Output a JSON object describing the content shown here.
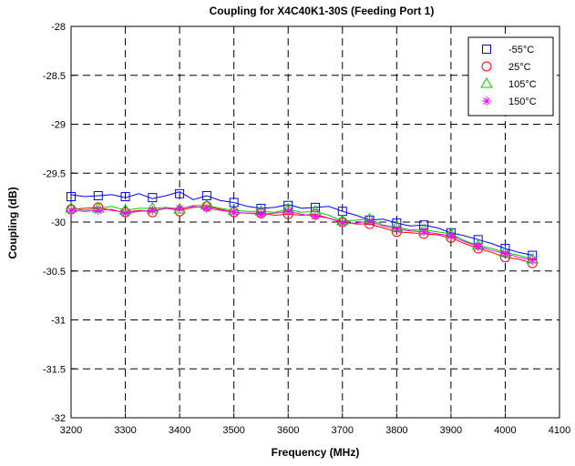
{
  "chart_data": {
    "type": "line",
    "title": "Coupling for X4C40K1-30S (Feeding Port 1)",
    "xlabel": "Frequency (MHz)",
    "ylabel": "Coupling (dB)",
    "xlim": [
      3200,
      4100
    ],
    "ylim": [
      -32,
      -28
    ],
    "xticks": [
      3200,
      3300,
      3400,
      3500,
      3600,
      3700,
      3800,
      3900,
      4000,
      4100
    ],
    "yticks": [
      -28,
      -28.5,
      -29,
      -29.5,
      -30,
      -30.5,
      -31,
      -31.5,
      -32
    ],
    "grid": true,
    "legend_position": "top-right",
    "x": [
      3200,
      3250,
      3300,
      3350,
      3400,
      3450,
      3500,
      3550,
      3600,
      3650,
      3700,
      3750,
      3800,
      3850,
      3900,
      3950,
      4000,
      4050
    ],
    "series": [
      {
        "name": "-55°C",
        "color": "#0000ff",
        "marker": "square",
        "marker_values": [
          -29.74,
          -29.73,
          -29.74,
          -29.75,
          -29.71,
          -29.73,
          -29.8,
          -29.86,
          -29.83,
          -29.85,
          -29.89,
          -29.98,
          -30.01,
          -30.03,
          -30.11,
          -30.18,
          -30.27,
          -30.34
        ],
        "curve_x": [
          3200,
          3225,
          3250,
          3275,
          3300,
          3325,
          3350,
          3375,
          3400,
          3425,
          3450,
          3475,
          3500,
          3525,
          3550,
          3575,
          3600,
          3625,
          3650,
          3675,
          3700,
          3725,
          3750,
          3775,
          3800,
          3825,
          3850,
          3875,
          3900,
          3925,
          3950,
          3975,
          4000,
          4025,
          4050
        ],
        "curve_values": [
          -29.72,
          -29.74,
          -29.73,
          -29.72,
          -29.75,
          -29.71,
          -29.76,
          -29.73,
          -29.69,
          -29.77,
          -29.73,
          -29.78,
          -29.8,
          -29.84,
          -29.86,
          -29.85,
          -29.82,
          -29.86,
          -29.85,
          -29.84,
          -29.89,
          -29.93,
          -29.98,
          -29.97,
          -30.01,
          -30.04,
          -30.03,
          -30.06,
          -30.11,
          -30.14,
          -30.18,
          -30.22,
          -30.27,
          -30.31,
          -30.34
        ]
      },
      {
        "name": "25°C",
        "color": "#ff0000",
        "marker": "circle",
        "marker_values": [
          -29.87,
          -29.85,
          -29.9,
          -29.9,
          -29.89,
          -29.84,
          -29.9,
          -29.91,
          -29.92,
          -29.92,
          -30.0,
          -30.02,
          -30.1,
          -30.12,
          -30.16,
          -30.27,
          -30.36,
          -30.42
        ],
        "curve_x": [
          3200,
          3225,
          3250,
          3275,
          3300,
          3325,
          3350,
          3375,
          3400,
          3425,
          3450,
          3475,
          3500,
          3525,
          3550,
          3575,
          3600,
          3625,
          3650,
          3675,
          3700,
          3725,
          3750,
          3775,
          3800,
          3825,
          3850,
          3875,
          3900,
          3925,
          3950,
          3975,
          4000,
          4025,
          4050
        ],
        "curve_values": [
          -29.87,
          -29.86,
          -29.85,
          -29.88,
          -29.9,
          -29.88,
          -29.89,
          -29.86,
          -29.88,
          -29.85,
          -29.84,
          -29.87,
          -29.9,
          -29.91,
          -29.91,
          -29.93,
          -29.92,
          -29.93,
          -29.92,
          -29.96,
          -30.0,
          -30.02,
          -30.02,
          -30.06,
          -30.1,
          -30.11,
          -30.12,
          -30.13,
          -30.16,
          -30.22,
          -30.27,
          -30.31,
          -30.36,
          -30.38,
          -30.42
        ]
      },
      {
        "name": "105°C",
        "color": "#00cc00",
        "marker": "triangle",
        "marker_values": [
          -29.86,
          -29.86,
          -29.88,
          -29.86,
          -29.87,
          -29.83,
          -29.88,
          -29.89,
          -29.87,
          -29.89,
          -29.99,
          -29.97,
          -30.05,
          -30.08,
          -30.12,
          -30.24,
          -30.31,
          -30.38
        ],
        "curve_x": [
          3200,
          3225,
          3250,
          3275,
          3300,
          3325,
          3350,
          3375,
          3400,
          3425,
          3450,
          3475,
          3500,
          3525,
          3550,
          3575,
          3600,
          3625,
          3650,
          3675,
          3700,
          3725,
          3750,
          3775,
          3800,
          3825,
          3850,
          3875,
          3900,
          3925,
          3950,
          3975,
          4000,
          4025,
          4050
        ],
        "curve_values": [
          -29.86,
          -29.88,
          -29.86,
          -29.84,
          -29.88,
          -29.86,
          -29.86,
          -29.85,
          -29.87,
          -29.83,
          -29.83,
          -29.86,
          -29.88,
          -29.89,
          -29.89,
          -29.9,
          -29.87,
          -29.9,
          -29.89,
          -29.93,
          -29.99,
          -29.98,
          -29.97,
          -30.03,
          -30.05,
          -30.08,
          -30.08,
          -30.1,
          -30.12,
          -30.19,
          -30.24,
          -30.27,
          -30.31,
          -30.34,
          -30.38
        ]
      },
      {
        "name": "150°C",
        "color": "#ff00ff",
        "marker": "asterisk",
        "marker_values": [
          -29.88,
          -29.88,
          -29.91,
          -29.88,
          -29.86,
          -29.86,
          -29.9,
          -29.92,
          -29.89,
          -29.94,
          -30.01,
          -29.99,
          -30.07,
          -30.1,
          -30.14,
          -30.25,
          -30.32,
          -30.39
        ],
        "curve_x": [
          3200,
          3225,
          3250,
          3275,
          3300,
          3325,
          3350,
          3375,
          3400,
          3425,
          3450,
          3475,
          3500,
          3525,
          3550,
          3575,
          3600,
          3625,
          3650,
          3675,
          3700,
          3725,
          3750,
          3775,
          3800,
          3825,
          3850,
          3875,
          3900,
          3925,
          3950,
          3975,
          4000,
          4025,
          4050
        ],
        "curve_values": [
          -29.88,
          -29.89,
          -29.88,
          -29.87,
          -29.91,
          -29.89,
          -29.88,
          -29.86,
          -29.86,
          -29.84,
          -29.86,
          -29.88,
          -29.9,
          -29.91,
          -29.92,
          -29.91,
          -29.89,
          -29.92,
          -29.94,
          -29.96,
          -30.01,
          -30.01,
          -29.99,
          -30.04,
          -30.07,
          -30.09,
          -30.1,
          -30.12,
          -30.14,
          -30.2,
          -30.25,
          -30.29,
          -30.32,
          -30.36,
          -30.39
        ]
      }
    ]
  }
}
